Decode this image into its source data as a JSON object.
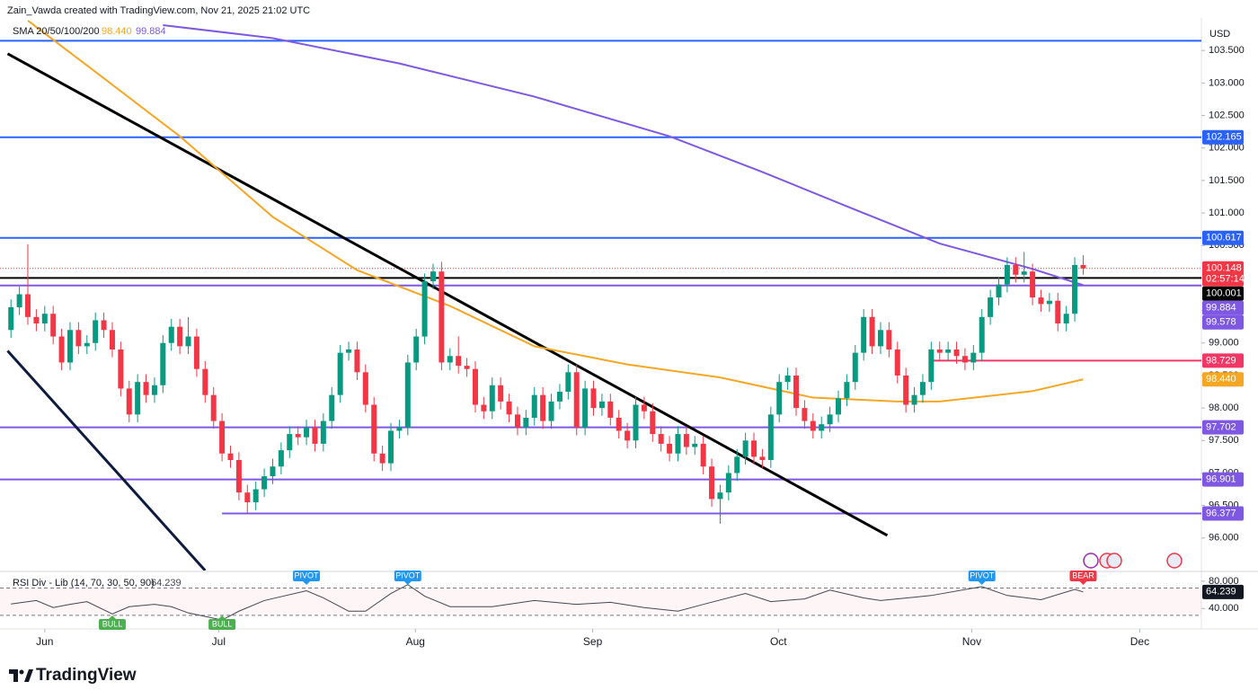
{
  "chart_data": {
    "type": "candlestick",
    "header": "Zain_Vawda created with TradingView.com, Nov 21, 2025 21:02 UTC",
    "currency": "USD",
    "brand": "TradingView",
    "up_color": "#089981",
    "down_color": "#f23645",
    "xlim": [
      -1.3,
      141
    ],
    "xticks": [
      {
        "value": 4,
        "label": "Jun"
      },
      {
        "value": 24.6,
        "label": "Jul"
      },
      {
        "value": 47.9,
        "label": "Aug"
      },
      {
        "value": 68.9,
        "label": "Sep"
      },
      {
        "value": 90.9,
        "label": "Oct"
      },
      {
        "value": 113.8,
        "label": "Nov"
      },
      {
        "value": 133.7,
        "label": "Dec"
      }
    ],
    "ylim": [
      95.5,
      104
    ],
    "yticks": [
      {
        "value": 96,
        "label": "96.000"
      },
      {
        "value": 96.5,
        "label": "96.500"
      },
      {
        "value": 97,
        "label": "97.000"
      },
      {
        "value": 97.5,
        "label": "97.500"
      },
      {
        "value": 98,
        "label": "98.000"
      },
      {
        "value": 98.5,
        "label": "98.500"
      },
      {
        "value": 99,
        "label": "99.000"
      },
      {
        "value": 99.5,
        "label": "99.500"
      },
      {
        "value": 100,
        "label": "100.000"
      },
      {
        "value": 100.5,
        "label": "100.500"
      },
      {
        "value": 101,
        "label": "101.000"
      },
      {
        "value": 101.5,
        "label": "101.500"
      },
      {
        "value": 102,
        "label": "102.000"
      },
      {
        "value": 102.5,
        "label": "102.500"
      },
      {
        "value": 103,
        "label": "103.000"
      },
      {
        "value": 103.5,
        "label": "103.500"
      }
    ],
    "candles": [
      [
        99.2,
        99.67,
        99.08,
        99.55
      ],
      [
        99.55,
        99.87,
        99.43,
        99.75
      ],
      [
        99.75,
        100.52,
        99.28,
        99.4
      ],
      [
        99.4,
        99.52,
        99.18,
        99.3
      ],
      [
        99.3,
        99.57,
        99.18,
        99.45
      ],
      [
        99.45,
        99.57,
        98.98,
        99.1
      ],
      [
        99.1,
        99.22,
        98.58,
        98.7
      ],
      [
        98.7,
        99.32,
        98.58,
        99.2
      ],
      [
        99.2,
        99.32,
        98.83,
        98.95
      ],
      [
        98.95,
        99.12,
        98.83,
        99.0
      ],
      [
        99.0,
        99.47,
        98.88,
        99.35
      ],
      [
        99.35,
        99.47,
        99.08,
        99.2
      ],
      [
        99.2,
        99.32,
        98.78,
        98.9
      ],
      [
        98.9,
        99.02,
        98.18,
        98.3
      ],
      [
        98.3,
        98.42,
        97.78,
        97.9
      ],
      [
        97.9,
        98.52,
        97.78,
        98.4
      ],
      [
        98.4,
        98.52,
        98.08,
        98.2
      ],
      [
        98.2,
        98.47,
        98.08,
        98.35
      ],
      [
        98.35,
        99.12,
        98.23,
        99.0
      ],
      [
        99.0,
        99.37,
        98.88,
        99.25
      ],
      [
        99.25,
        99.37,
        98.83,
        98.95
      ],
      [
        98.95,
        99.4,
        98.83,
        99.1
      ],
      [
        99.1,
        99.22,
        98.48,
        98.6
      ],
      [
        98.6,
        98.72,
        98.08,
        98.2
      ],
      [
        98.2,
        98.32,
        97.68,
        97.8
      ],
      [
        97.8,
        97.92,
        97.18,
        97.3
      ],
      [
        97.3,
        97.42,
        97.08,
        97.2
      ],
      [
        97.2,
        97.32,
        96.58,
        96.7
      ],
      [
        96.7,
        96.82,
        96.38,
        96.55
      ],
      [
        96.55,
        96.87,
        96.43,
        96.75
      ],
      [
        96.75,
        97.07,
        96.63,
        96.95
      ],
      [
        96.95,
        97.22,
        96.83,
        97.1
      ],
      [
        97.1,
        97.47,
        96.98,
        97.35
      ],
      [
        97.35,
        97.72,
        97.23,
        97.6
      ],
      [
        97.6,
        97.72,
        97.43,
        97.55
      ],
      [
        97.55,
        97.82,
        97.43,
        97.7
      ],
      [
        97.7,
        97.82,
        97.33,
        97.45
      ],
      [
        97.45,
        97.92,
        97.33,
        97.8
      ],
      [
        97.8,
        98.32,
        97.68,
        98.2
      ],
      [
        98.2,
        98.97,
        98.08,
        98.85
      ],
      [
        98.85,
        99.02,
        98.73,
        98.9
      ],
      [
        98.9,
        99.02,
        98.43,
        98.55
      ],
      [
        98.55,
        98.67,
        97.93,
        98.05
      ],
      [
        98.05,
        98.17,
        97.18,
        97.3
      ],
      [
        97.3,
        97.42,
        97.03,
        97.15
      ],
      [
        97.15,
        97.77,
        97.03,
        97.65
      ],
      [
        97.65,
        97.82,
        97.53,
        97.7
      ],
      [
        97.7,
        98.82,
        97.58,
        98.7
      ],
      [
        98.7,
        99.22,
        98.58,
        99.1
      ],
      [
        99.1,
        100.07,
        98.98,
        99.95
      ],
      [
        99.95,
        100.22,
        99.83,
        100.1
      ],
      [
        100.1,
        100.25,
        98.58,
        98.7
      ],
      [
        98.7,
        98.92,
        98.58,
        98.8
      ],
      [
        98.8,
        99.1,
        98.53,
        98.65
      ],
      [
        98.65,
        98.77,
        98.48,
        98.6
      ],
      [
        98.6,
        98.72,
        97.93,
        98.05
      ],
      [
        98.05,
        98.17,
        97.83,
        97.95
      ],
      [
        97.95,
        98.47,
        97.83,
        98.35
      ],
      [
        98.35,
        98.47,
        97.98,
        98.1
      ],
      [
        98.1,
        98.22,
        97.78,
        97.9
      ],
      [
        97.9,
        98.02,
        97.58,
        97.7
      ],
      [
        97.7,
        97.97,
        97.58,
        97.85
      ],
      [
        97.85,
        98.32,
        97.73,
        98.2
      ],
      [
        98.2,
        98.32,
        97.68,
        97.8
      ],
      [
        97.8,
        98.22,
        97.68,
        98.1
      ],
      [
        98.1,
        98.37,
        97.98,
        98.25
      ],
      [
        98.25,
        98.67,
        98.13,
        98.55
      ],
      [
        98.55,
        98.67,
        97.58,
        97.7
      ],
      [
        97.7,
        98.42,
        97.58,
        98.3
      ],
      [
        98.3,
        98.42,
        97.88,
        98.0
      ],
      [
        98.0,
        98.22,
        97.88,
        98.1
      ],
      [
        98.1,
        98.22,
        97.73,
        97.85
      ],
      [
        97.85,
        97.97,
        97.53,
        97.65
      ],
      [
        97.65,
        97.77,
        97.38,
        97.5
      ],
      [
        97.5,
        98.17,
        97.38,
        98.05
      ],
      [
        98.05,
        98.17,
        97.83,
        97.95
      ],
      [
        97.95,
        98.07,
        97.48,
        97.6
      ],
      [
        97.6,
        97.72,
        97.33,
        97.45
      ],
      [
        97.45,
        97.57,
        97.18,
        97.3
      ],
      [
        97.3,
        97.72,
        97.18,
        97.6
      ],
      [
        97.6,
        97.72,
        97.28,
        97.4
      ],
      [
        97.4,
        97.57,
        97.28,
        97.45
      ],
      [
        97.45,
        97.57,
        96.98,
        97.1
      ],
      [
        97.1,
        97.22,
        96.48,
        96.6
      ],
      [
        96.6,
        96.82,
        96.22,
        96.7
      ],
      [
        96.7,
        97.12,
        96.58,
        97.0
      ],
      [
        97.0,
        97.37,
        96.88,
        97.25
      ],
      [
        97.25,
        97.62,
        97.13,
        97.5
      ],
      [
        97.5,
        97.62,
        97.13,
        97.25
      ],
      [
        97.25,
        97.37,
        97.08,
        97.2
      ],
      [
        97.2,
        98.02,
        97.08,
        97.9
      ],
      [
        97.9,
        98.52,
        97.78,
        98.4
      ],
      [
        98.4,
        98.62,
        98.28,
        98.5
      ],
      [
        98.5,
        98.62,
        97.88,
        98.0
      ],
      [
        98.0,
        98.12,
        97.68,
        97.8
      ],
      [
        97.8,
        97.92,
        97.53,
        97.65
      ],
      [
        97.65,
        97.87,
        97.53,
        97.75
      ],
      [
        97.75,
        98.02,
        97.63,
        97.9
      ],
      [
        97.9,
        98.27,
        97.78,
        98.15
      ],
      [
        98.15,
        98.52,
        98.03,
        98.4
      ],
      [
        98.4,
        98.97,
        98.28,
        98.85
      ],
      [
        98.85,
        99.52,
        98.73,
        99.4
      ],
      [
        99.4,
        99.52,
        98.83,
        98.95
      ],
      [
        98.95,
        99.32,
        98.83,
        99.2
      ],
      [
        99.2,
        99.32,
        98.78,
        98.9
      ],
      [
        98.9,
        99.02,
        98.38,
        98.5
      ],
      [
        98.5,
        98.62,
        97.93,
        98.05
      ],
      [
        98.05,
        98.32,
        97.93,
        98.2
      ],
      [
        98.2,
        98.52,
        98.08,
        98.4
      ],
      [
        98.4,
        99.02,
        98.28,
        98.9
      ],
      [
        98.9,
        99.02,
        98.73,
        98.85
      ],
      [
        98.85,
        99.02,
        98.73,
        98.9
      ],
      [
        98.9,
        99.02,
        98.68,
        98.8
      ],
      [
        98.8,
        98.92,
        98.58,
        98.7
      ],
      [
        98.7,
        98.97,
        98.58,
        98.85
      ],
      [
        98.85,
        99.52,
        98.73,
        99.4
      ],
      [
        99.4,
        99.82,
        99.28,
        99.7
      ],
      [
        99.7,
        100.02,
        99.58,
        99.9
      ],
      [
        99.9,
        100.32,
        99.78,
        100.2
      ],
      [
        100.2,
        100.32,
        99.93,
        100.05
      ],
      [
        100.05,
        100.4,
        99.93,
        100.1
      ],
      [
        100.1,
        100.22,
        99.58,
        99.7
      ],
      [
        99.7,
        99.82,
        99.48,
        99.6
      ],
      [
        99.6,
        99.77,
        99.48,
        99.65
      ],
      [
        99.65,
        99.77,
        99.18,
        99.3
      ],
      [
        99.3,
        99.57,
        99.18,
        99.45
      ],
      [
        99.45,
        100.32,
        99.33,
        100.2
      ],
      [
        100.2,
        100.35,
        100.05,
        100.148
      ]
    ],
    "sma": {
      "name": "SMA 20/50/100/200",
      "series": [
        {
          "color": "#f5a623",
          "x": [
            2,
            9,
            20,
            31,
            41,
            52,
            62,
            73,
            84,
            95,
            105,
            110,
            121,
            127
          ],
          "values": [
            103.96,
            103.27,
            102.18,
            100.94,
            100.12,
            99.57,
            98.95,
            98.67,
            98.47,
            98.16,
            98.1,
            98.1,
            98.26,
            98.44
          ],
          "last": {
            "value": 98.44,
            "label": "98.440"
          },
          "badge": true
        },
        {
          "color": "#7e57e2",
          "x": [
            18,
            31,
            46,
            62,
            78,
            89,
            100,
            110,
            121,
            127
          ],
          "values": [
            103.89,
            103.69,
            103.3,
            102.79,
            102.18,
            101.63,
            101.05,
            100.53,
            100.14,
            99.89
          ],
          "last": {
            "value": 99.884,
            "label": "99.884"
          },
          "badge": false
        }
      ]
    },
    "trendlines": [
      {
        "color": "#000000",
        "x": [
          -0.4,
          103.8
        ],
        "values": [
          103.45,
          96.04
        ]
      },
      {
        "color": "#0d1b3e",
        "x": [
          -0.4,
          23
        ],
        "values": [
          98.88,
          95.5
        ]
      }
    ],
    "levels": [
      {
        "value": 103.65,
        "color": "#2962ff"
      },
      {
        "value": 102.165,
        "label": "102.165",
        "color": "#2962ff"
      },
      {
        "value": 100.617,
        "label": "100.617",
        "color": "#2962ff"
      },
      {
        "value": 100.001,
        "label": "100.001",
        "color": "#000000"
      },
      {
        "value": 99.884,
        "label": "99.884",
        "color": "#7e57e2"
      },
      {
        "value": 98.729,
        "label": "98.729",
        "color": "#f23665",
        "start": 109
      },
      {
        "value": 97.702,
        "label": "97.702",
        "color": "#7e57e2"
      },
      {
        "value": 96.901,
        "label": "96.901",
        "color": "#7e57e2"
      },
      {
        "value": 96.377,
        "label": "96.377",
        "color": "#7e57e2",
        "start": 25
      }
    ],
    "badges": [
      {
        "value": 100.148,
        "label": "100.148",
        "timer": "02:57:14",
        "color": "#f23645",
        "dotted": true
      },
      {
        "value": 99.578,
        "label": "99.578",
        "color": "#7e57e2"
      }
    ],
    "rsi": {
      "name": "RSI Div - Lib (14, 70, 30, 50, 90)",
      "color": "#434651",
      "ylim": [
        10,
        93
      ],
      "yticks": [
        {
          "value": 80,
          "label": "80.000"
        },
        {
          "value": 40,
          "label": "40.000"
        }
      ],
      "bands": [
        70,
        30
      ],
      "x": [
        0,
        3,
        5,
        7,
        9,
        12,
        14,
        17,
        19,
        21,
        25,
        27,
        30,
        35,
        37,
        40,
        42,
        45,
        47,
        49,
        52,
        57,
        62,
        67,
        71,
        75,
        79,
        82,
        87,
        90,
        94,
        97,
        101,
        103,
        109,
        115,
        118,
        122,
        126,
        127
      ],
      "values": [
        46.5,
        51.6,
        41.3,
        46,
        50,
        32,
        42.6,
        46,
        42.6,
        33.5,
        23,
        36,
        51.6,
        66,
        55.5,
        36,
        36,
        62,
        75,
        58,
        42.6,
        42.6,
        51.6,
        46,
        49,
        41.3,
        36,
        46,
        62,
        50,
        54,
        67,
        55.5,
        51.6,
        59,
        72,
        59,
        52.9,
        68,
        64.239
      ],
      "last": {
        "value": 64.239,
        "label": "64.239"
      },
      "signals": [
        {
          "x": 35,
          "label": "PIVOT",
          "color": "#2196f3",
          "position": "above"
        },
        {
          "x": 47,
          "label": "PIVOT",
          "color": "#2196f3",
          "position": "above"
        },
        {
          "x": 115,
          "label": "PIVOT",
          "color": "#2196f3",
          "position": "above"
        },
        {
          "x": 12,
          "label": "BULL",
          "color": "#4caf50",
          "position": "below"
        },
        {
          "x": 25,
          "label": "BULL",
          "color": "#4caf50",
          "position": "below"
        },
        {
          "x": 127,
          "label": "BEAR",
          "color": "#f23645",
          "position": "above"
        }
      ]
    }
  }
}
